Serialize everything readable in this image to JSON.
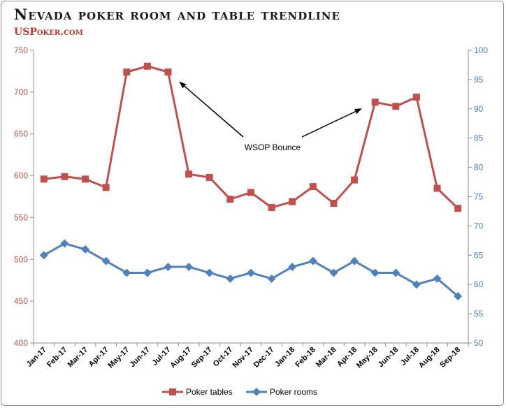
{
  "title": "Nevada poker room and table trendline",
  "brand": "USPoker.com",
  "chart_data": {
    "type": "line",
    "categories": [
      "Jan-17",
      "Feb-17",
      "Mar-17",
      "Apr-17",
      "May-17",
      "Jun-17",
      "Jul-17",
      "Aug-17",
      "Sep-17",
      "Oct-17",
      "Nov-17",
      "Dec-17",
      "Jan-18",
      "Feb-18",
      "Mar-18",
      "Apr-18",
      "May-18",
      "Jun-18",
      "Jul-18",
      "Aug-18",
      "Sep-18"
    ],
    "y_left": {
      "min": 400,
      "max": 750,
      "step": 50,
      "ticks": [
        "400",
        "450",
        "500",
        "550",
        "600",
        "650",
        "700",
        "750"
      ]
    },
    "y_right": {
      "min": 50,
      "max": 100,
      "step": 5,
      "ticks": [
        "50",
        "55",
        "60",
        "65",
        "70",
        "75",
        "80",
        "85",
        "90",
        "95",
        "100"
      ]
    },
    "series": [
      {
        "name": "Poker tables",
        "axis": "left",
        "color": "#c0504d",
        "marker": "square",
        "values": [
          596,
          599,
          596,
          586,
          724,
          731,
          724,
          602,
          598,
          572,
          580,
          562,
          569,
          587,
          567,
          595,
          688,
          683,
          694,
          585,
          561
        ]
      },
      {
        "name": "Poker rooms",
        "axis": "right",
        "color": "#4f81bd",
        "marker": "diamond",
        "values": [
          65,
          67,
          66,
          64,
          62,
          62,
          63,
          63,
          62,
          61,
          62,
          61,
          63,
          64,
          62,
          64,
          62,
          62,
          60,
          61,
          58
        ]
      }
    ],
    "annotation": {
      "text": "WSOP Bounce",
      "arrows_to": [
        {
          "category": "Jul-17",
          "series": "Poker tables"
        },
        {
          "category": "May-18",
          "series": "Poker tables"
        }
      ]
    },
    "legend": "bottom",
    "grid": false
  }
}
